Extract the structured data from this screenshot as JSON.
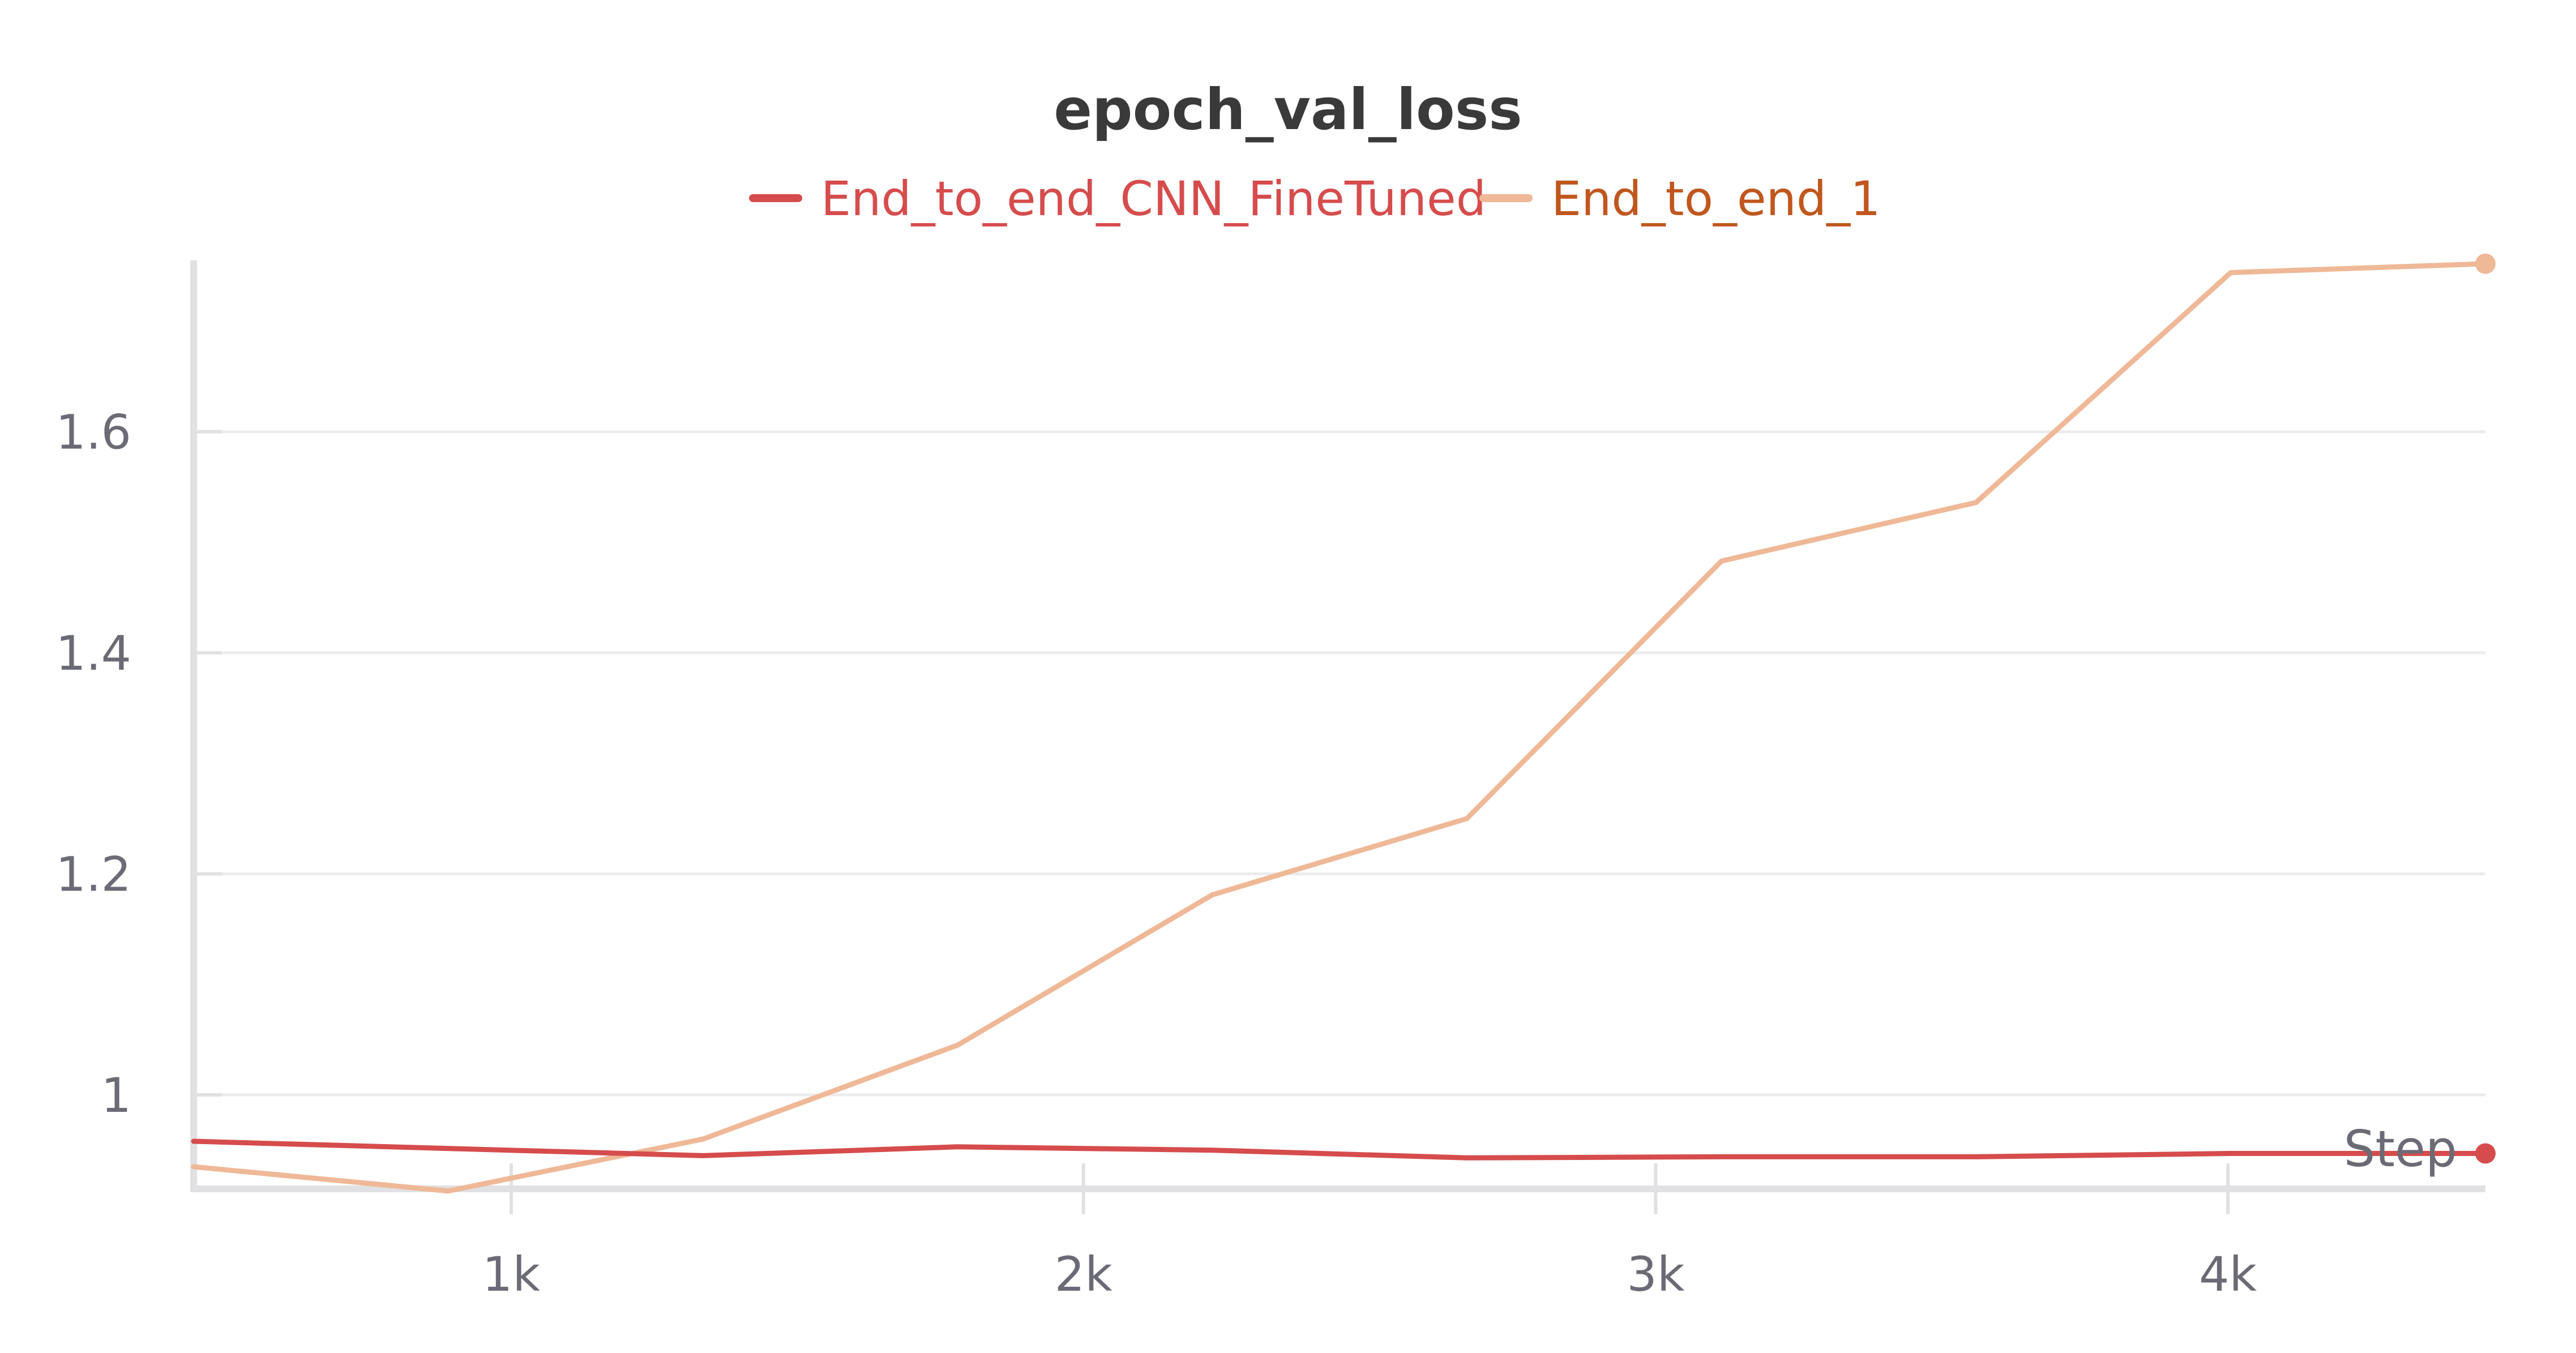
{
  "chart_data": {
    "type": "line",
    "title": "epoch_val_loss",
    "xlabel": "Step",
    "ylabel": "",
    "xlim": [
      445,
      4450
    ],
    "ylim": [
      0.915,
      1.755
    ],
    "x_ticks": [
      {
        "value": 1000,
        "label": "1k"
      },
      {
        "value": 2000,
        "label": "2k"
      },
      {
        "value": 3000,
        "label": "3k"
      },
      {
        "value": 4000,
        "label": "4k"
      }
    ],
    "y_ticks": [
      {
        "value": 1.0,
        "label": "1"
      },
      {
        "value": 1.2,
        "label": "1.2"
      },
      {
        "value": 1.4,
        "label": "1.4"
      },
      {
        "value": 1.6,
        "label": "1.6"
      }
    ],
    "grid": true,
    "legend_position": "top-center",
    "series": [
      {
        "name": "End_to_end_CNN_FineTuned",
        "color": "#d64c4c",
        "label_color": "#d64c4c",
        "x": [
          445,
          1335,
          1780,
          2225,
          2670,
          3115,
          3560,
          4005,
          4450
        ],
        "y": [
          0.958,
          0.945,
          0.953,
          0.95,
          0.943,
          0.944,
          0.944,
          0.947,
          0.947
        ]
      },
      {
        "name": "End_to_end_1",
        "color": "#efb897",
        "label_color": "#c0571e",
        "x": [
          445,
          890,
          1335,
          1780,
          2225,
          2670,
          3115,
          3560,
          4005,
          4450
        ],
        "y": [
          0.935,
          0.913,
          0.96,
          1.045,
          1.181,
          1.25,
          1.483,
          1.536,
          1.744,
          1.752
        ]
      }
    ]
  }
}
